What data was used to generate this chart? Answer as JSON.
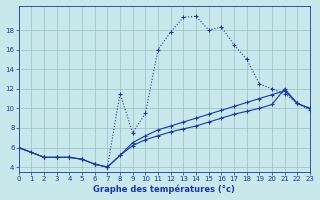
{
  "bg_color": "#c8e8ec",
  "line_color": "#1a3a9e",
  "grid_color": "#9bbfc4",
  "xlabel": "Graphe des températures (°c)",
  "xlim": [
    0,
    23
  ],
  "ylim": [
    3.5,
    20.5
  ],
  "yticks": [
    4,
    6,
    8,
    10,
    12,
    14,
    16,
    18
  ],
  "xticks": [
    0,
    1,
    2,
    3,
    4,
    5,
    6,
    7,
    8,
    9,
    10,
    11,
    12,
    13,
    14,
    15,
    16,
    17,
    18,
    19,
    20,
    21,
    22,
    23
  ],
  "curve1_x": [
    0,
    1,
    2,
    3,
    4,
    5,
    6,
    7,
    8,
    9,
    10,
    11,
    12,
    13,
    14,
    15,
    16,
    17,
    18,
    19,
    20,
    21,
    22,
    23
  ],
  "curve1_y": [
    6.0,
    5.5,
    5.0,
    5.0,
    5.0,
    4.8,
    4.3,
    4.0,
    11.5,
    7.5,
    9.5,
    16.0,
    17.8,
    19.3,
    19.4,
    18.0,
    18.3,
    16.5,
    15.0,
    12.5,
    12.0,
    11.5,
    10.5,
    9.8
  ],
  "curve2_x": [
    0,
    2,
    3,
    4,
    5,
    6,
    7,
    8,
    9,
    10,
    11,
    12,
    13,
    14,
    15,
    16,
    17,
    18,
    19,
    20,
    21,
    22,
    23
  ],
  "curve2_y": [
    6.0,
    5.0,
    5.0,
    5.0,
    4.8,
    4.3,
    4.0,
    5.2,
    6.2,
    6.8,
    7.2,
    7.6,
    7.9,
    8.2,
    8.6,
    9.0,
    9.4,
    9.7,
    10.0,
    10.4,
    12.0,
    10.5,
    10.0
  ],
  "curve3_x": [
    0,
    2,
    3,
    4,
    5,
    6,
    7,
    8,
    9,
    10,
    11,
    12,
    13,
    14,
    15,
    16,
    17,
    18,
    19,
    20,
    21,
    22,
    23
  ],
  "curve3_y": [
    6.0,
    5.0,
    5.0,
    5.0,
    4.8,
    4.3,
    4.0,
    5.2,
    6.5,
    7.2,
    7.8,
    8.2,
    8.6,
    9.0,
    9.4,
    9.8,
    10.2,
    10.6,
    11.0,
    11.4,
    11.8,
    10.5,
    10.0
  ]
}
